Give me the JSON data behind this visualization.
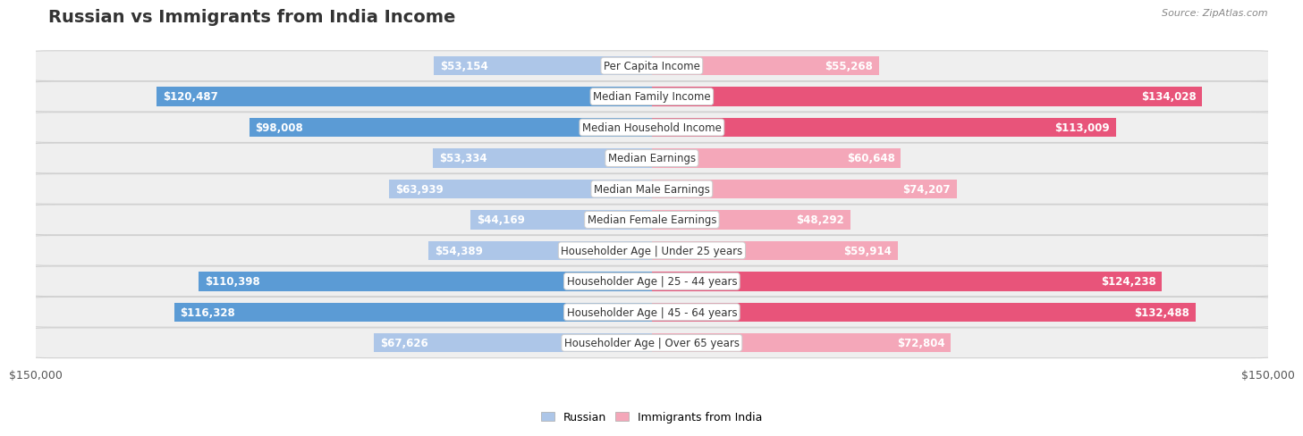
{
  "title": "Russian vs Immigrants from India Income",
  "source": "Source: ZipAtlas.com",
  "categories": [
    "Per Capita Income",
    "Median Family Income",
    "Median Household Income",
    "Median Earnings",
    "Median Male Earnings",
    "Median Female Earnings",
    "Householder Age | Under 25 years",
    "Householder Age | 25 - 44 years",
    "Householder Age | 45 - 64 years",
    "Householder Age | Over 65 years"
  ],
  "russian_values": [
    53154,
    120487,
    98008,
    53334,
    63939,
    44169,
    54389,
    110398,
    116328,
    67626
  ],
  "india_values": [
    55268,
    134028,
    113009,
    60648,
    74207,
    48292,
    59914,
    124238,
    132488,
    72804
  ],
  "russian_labels": [
    "$53,154",
    "$120,487",
    "$98,008",
    "$53,334",
    "$63,939",
    "$44,169",
    "$54,389",
    "$110,398",
    "$116,328",
    "$67,626"
  ],
  "india_labels": [
    "$55,268",
    "$134,028",
    "$113,009",
    "$60,648",
    "$74,207",
    "$48,292",
    "$59,914",
    "$124,238",
    "$132,488",
    "$72,804"
  ],
  "max_value": 150000,
  "russian_color_light": "#adc6e8",
  "russian_color_dark": "#5b9bd5",
  "india_color_light": "#f4a7b9",
  "india_color_dark": "#e8547a",
  "threshold_dark": 80000,
  "label_inside_color": "#ffffff",
  "label_outside_color": "#555555",
  "label_threshold": 0.2,
  "bar_height": 0.62,
  "row_bg_color": "#efefef",
  "background_color": "#ffffff",
  "legend_russian": "Russian",
  "legend_india": "Immigrants from India",
  "title_fontsize": 14,
  "label_fontsize": 8.5,
  "cat_fontsize": 8.5
}
